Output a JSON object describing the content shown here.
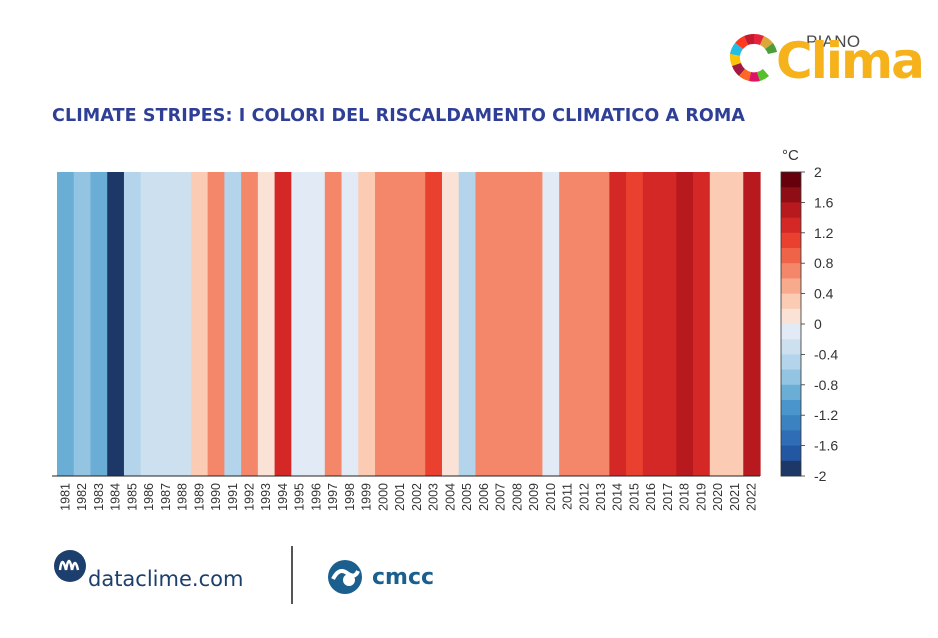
{
  "header": {
    "logo_prefix": "PIANO",
    "logo_word": "Clima",
    "title": "CLIMATE STRIPES: I COLORI DEL RISCALDAMENTO CLIMATICO A ROMA"
  },
  "footer": {
    "dataclime_label": "dataclime.com",
    "cmcc_label": "cmcc"
  },
  "chart_data": {
    "type": "heatmap",
    "title": "CLIMATE STRIPES: I COLORI DEL RISCALDAMENTO CLIMATICO A ROMA",
    "unit": "°C",
    "x": [
      "1981",
      "1982",
      "1983",
      "1984",
      "1985",
      "1986",
      "1987",
      "1988",
      "1989",
      "1990",
      "1991",
      "1992",
      "1993",
      "1994",
      "1995",
      "1996",
      "1997",
      "1998",
      "1999",
      "2000",
      "2001",
      "2002",
      "2003",
      "2004",
      "2005",
      "2006",
      "2007",
      "2008",
      "2009",
      "2010",
      "2011",
      "2012",
      "2013",
      "2014",
      "2015",
      "2016",
      "2017",
      "2018",
      "2019",
      "2020",
      "2021",
      "2022"
    ],
    "values": [
      -1.0,
      -0.8,
      -1.0,
      -2.0,
      -0.6,
      -0.4,
      -0.4,
      -0.4,
      0.4,
      0.6,
      -0.6,
      0.6,
      0.2,
      1.2,
      -0.2,
      -0.2,
      0.6,
      -0.2,
      0.4,
      0.8,
      0.6,
      0.6,
      1.0,
      0.2,
      -0.6,
      0.6,
      0.8,
      0.8,
      0.8,
      -0.2,
      0.8,
      0.6,
      0.6,
      1.2,
      1.0,
      1.2,
      1.2,
      1.4,
      1.2,
      0.4,
      0.4,
      1.6
    ],
    "colorbar": {
      "ticks": [
        "2",
        "1.6",
        "1.2",
        "0.8",
        "0.4",
        "0",
        "-0.4",
        "-0.8",
        "-1.2",
        "-1.6",
        "-2"
      ],
      "range": [
        -2,
        2
      ],
      "levels": [
        "#1d3766",
        "#2357a2",
        "#2f6db6",
        "#3b82c1",
        "#4a96cc",
        "#6aaed6",
        "#93c4e2",
        "#b3d4ea",
        "#cde0f0",
        "#e2ebf5",
        "#fae3d6",
        "#fbcbb4",
        "#f7aa8c",
        "#f4876a",
        "#ef6349",
        "#e9402f",
        "#d42827",
        "#b7191f",
        "#8f0d14",
        "#67000d"
      ]
    },
    "xlabel": "",
    "ylabel": ""
  }
}
